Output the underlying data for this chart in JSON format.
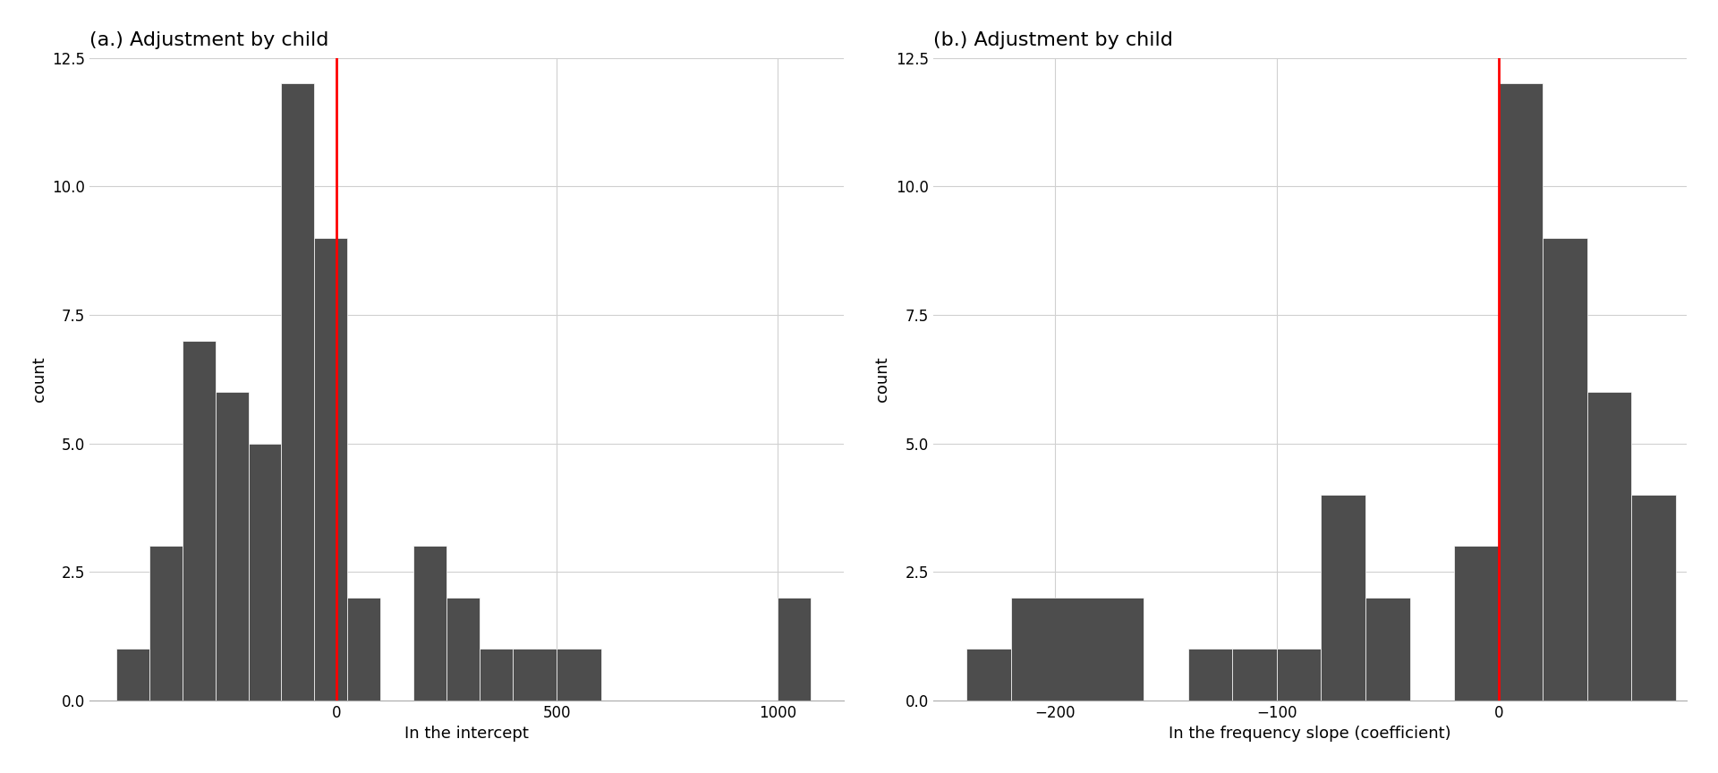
{
  "title_a": "(a.) Adjustment by child",
  "title_b": "(b.) Adjustment by child",
  "xlabel_a": "In the intercept",
  "xlabel_b": "In the frequency slope (coefficient)",
  "ylabel": "count",
  "bar_color": "#4d4d4d",
  "vline_color": "red",
  "background_color": "#ffffff",
  "grid_color": "#d0d0d0",
  "ylim": [
    0,
    12.5
  ],
  "yticks": [
    0.0,
    2.5,
    5.0,
    7.5,
    10.0,
    12.5
  ],
  "hist_a_bin_edges": [
    -500,
    -425,
    -350,
    -275,
    -200,
    -125,
    -50,
    25,
    100,
    175,
    250,
    325,
    400,
    500,
    600,
    1000,
    1075
  ],
  "hist_a_counts": [
    1,
    3,
    7,
    6,
    5,
    12,
    9,
    2,
    0,
    3,
    2,
    1,
    1,
    1,
    0,
    2
  ],
  "hist_b_bin_edges": [
    -240,
    -220,
    -160,
    -140,
    -120,
    -100,
    -80,
    -60,
    -40,
    -20,
    0,
    20,
    40,
    60,
    80
  ],
  "hist_b_counts": [
    1,
    2,
    0,
    1,
    1,
    1,
    4,
    2,
    0,
    3,
    12,
    9,
    6,
    4
  ],
  "vline_a_x": 0,
  "vline_b_x": 0,
  "xlim_a": [
    -560,
    1150
  ],
  "xticks_a": [
    0,
    500,
    1000
  ],
  "xlim_b": [
    -255,
    85
  ],
  "xticks_b": [
    -200,
    -100,
    0
  ]
}
